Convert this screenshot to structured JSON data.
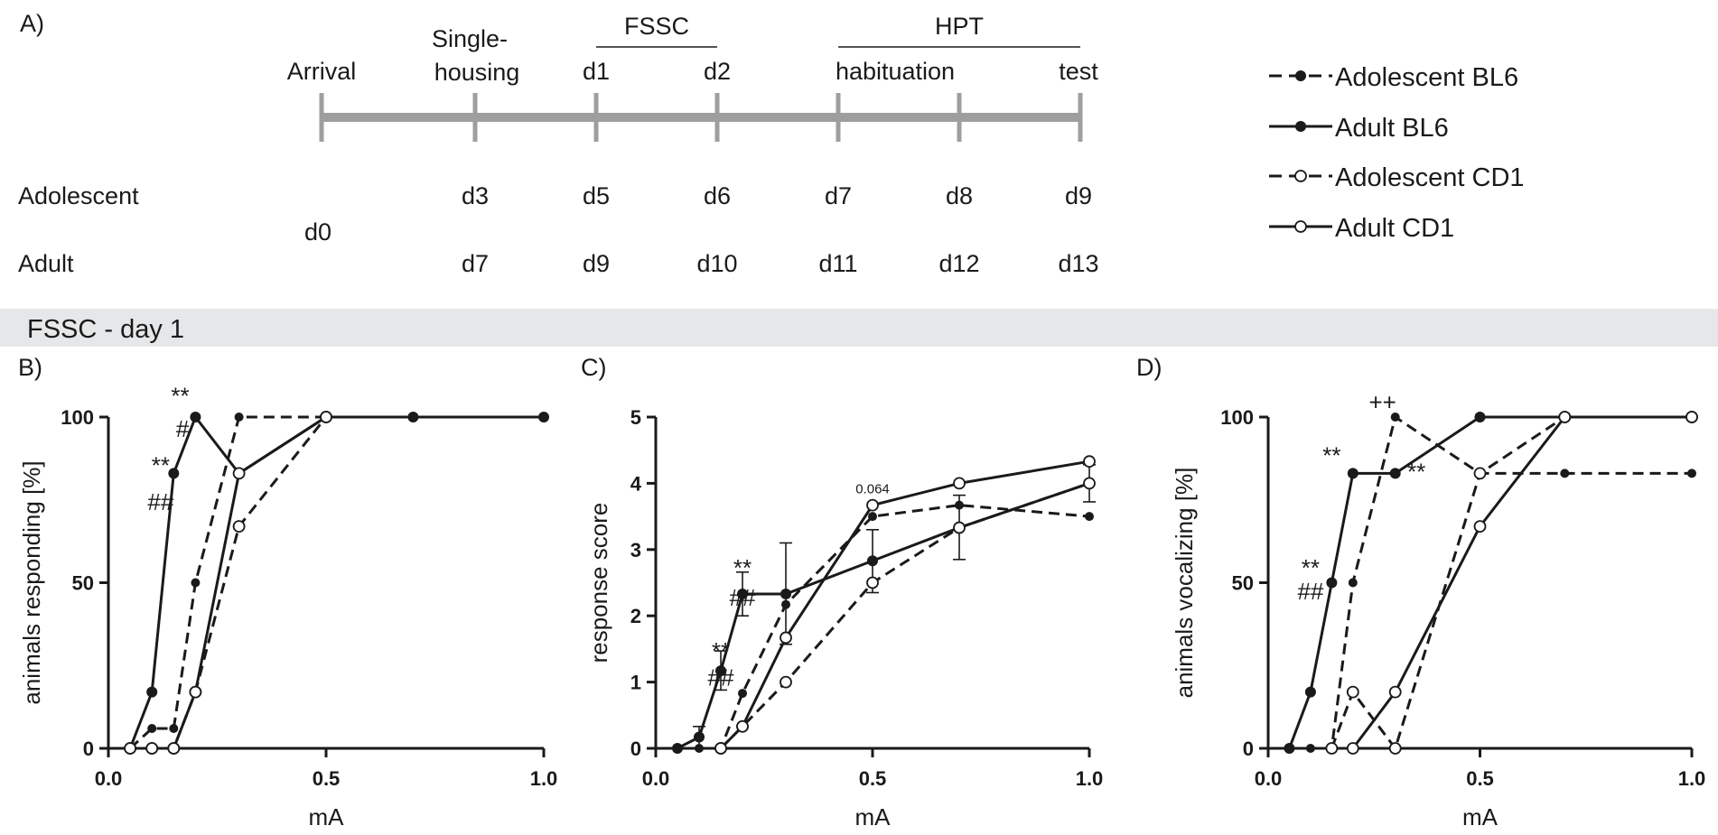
{
  "panel_a": {
    "label": "A)",
    "stages": [
      "Arrival",
      "Single-",
      "housing",
      "d1",
      "d2",
      "habituation",
      "test"
    ],
    "group_labels": {
      "fssc": "FSSC",
      "hpt": "HPT"
    },
    "rows": [
      {
        "name": "Adolescent",
        "days": [
          "d3",
          "d5",
          "d6",
          "d7",
          "d8",
          "d9"
        ]
      },
      {
        "name": "Adult",
        "days": [
          "d7",
          "d9",
          "d10",
          "d11",
          "d12",
          "d13"
        ]
      }
    ],
    "start_day": "d0"
  },
  "legend": [
    {
      "label": "Adolescent BL6",
      "style": "dashed",
      "marker": "filled"
    },
    {
      "label": "Adult BL6",
      "style": "solid",
      "marker": "filled"
    },
    {
      "label": "Adolescent CD1",
      "style": "dashed",
      "marker": "open"
    },
    {
      "label": "Adult CD1",
      "style": "solid",
      "marker": "open"
    }
  ],
  "section_title": "FSSC - day 1",
  "chart_data": [
    {
      "type": "line",
      "label": "B)",
      "xlabel": "mA",
      "ylabel": "animals responding [%]",
      "xlim": [
        0,
        1.0
      ],
      "ylim": [
        0,
        100
      ],
      "xticks": [
        0.0,
        0.5,
        1.0
      ],
      "xtick_labels": [
        "0.0",
        "0.5",
        "1.0"
      ],
      "yticks": [
        0,
        50,
        100
      ],
      "ytick_labels": [
        "0",
        "50",
        "100"
      ],
      "series": [
        {
          "name": "Adolescent BL6",
          "x": [
            0.05,
            0.1,
            0.15,
            0.2,
            0.3,
            0.5
          ],
          "y": [
            0,
            6,
            6,
            50,
            100,
            100
          ]
        },
        {
          "name": "Adult BL6",
          "x": [
            0.05,
            0.1,
            0.15,
            0.2,
            0.3,
            0.5,
            0.7,
            1.0
          ],
          "y": [
            0,
            17,
            83,
            100,
            83,
            100,
            100,
            100
          ]
        },
        {
          "name": "Adolescent CD1",
          "x": [
            0.05,
            0.1,
            0.15,
            0.2,
            0.3,
            0.5
          ],
          "y": [
            0,
            0,
            0,
            17,
            67,
            100
          ]
        },
        {
          "name": "Adult CD1",
          "x": [
            0.05,
            0.1,
            0.15,
            0.2,
            0.3,
            0.5
          ],
          "y": [
            0,
            0,
            0,
            17,
            83,
            100
          ]
        }
      ],
      "annotations": [
        {
          "text": "**",
          "x": 0.165,
          "y": 104
        },
        {
          "text": "#",
          "x": 0.17,
          "y": 94
        },
        {
          "text": "**",
          "x": 0.12,
          "y": 83
        },
        {
          "text": "##",
          "x": 0.12,
          "y": 72
        }
      ]
    },
    {
      "type": "line",
      "label": "C)",
      "xlabel": "mA",
      "ylabel": "response score",
      "xlim": [
        0,
        1.0
      ],
      "ylim": [
        0,
        5
      ],
      "xticks": [
        0.0,
        0.5,
        1.0
      ],
      "xtick_labels": [
        "0.0",
        "0.5",
        "1.0"
      ],
      "yticks": [
        0,
        1,
        2,
        3,
        4,
        5
      ],
      "ytick_labels": [
        "0",
        "1",
        "2",
        "3",
        "4",
        "5"
      ],
      "series": [
        {
          "name": "Adolescent BL6",
          "x": [
            0.1,
            0.15,
            0.2,
            0.3,
            0.5,
            0.7,
            1.0
          ],
          "y": [
            0,
            0,
            0.83,
            2.17,
            3.5,
            3.67,
            3.5
          ]
        },
        {
          "name": "Adult BL6",
          "x": [
            0.05,
            0.1,
            0.15,
            0.2,
            0.3,
            0.5,
            0.7,
            1.0
          ],
          "y": [
            0,
            0.17,
            1.17,
            2.33,
            2.33,
            2.83,
            3.33,
            4.0
          ]
        },
        {
          "name": "Adolescent CD1",
          "x": [
            0.15,
            0.2,
            0.3,
            0.5,
            0.7,
            1.0
          ],
          "y": [
            0,
            0.33,
            1.0,
            2.5,
            3.33,
            4.0
          ]
        },
        {
          "name": "Adult CD1",
          "x": [
            0.15,
            0.2,
            0.3,
            0.5,
            0.7,
            1.0
          ],
          "y": [
            0,
            0.33,
            1.67,
            3.67,
            4.0,
            4.33
          ]
        }
      ],
      "error_bars": [
        {
          "x": 0.1,
          "low": 0.0,
          "high": 0.33
        },
        {
          "x": 0.15,
          "low": 0.88,
          "high": 1.47
        },
        {
          "x": 0.2,
          "low": 2.0,
          "high": 2.66
        },
        {
          "x": 0.3,
          "low": 1.57,
          "high": 3.1
        },
        {
          "x": 0.5,
          "low": 2.35,
          "high": 3.3
        },
        {
          "x": 0.7,
          "low": 2.85,
          "high": 3.82
        },
        {
          "x": 1.0,
          "low": 3.72,
          "high": 4.28
        }
      ],
      "annotations": [
        {
          "text": "**",
          "x": 0.2,
          "y": 2.6
        },
        {
          "text": "##",
          "x": 0.2,
          "y": 2.15
        },
        {
          "text": "**",
          "x": 0.15,
          "y": 1.35
        },
        {
          "text": "##",
          "x": 0.15,
          "y": 0.95
        },
        {
          "text": "0.064",
          "x": 0.5,
          "y": 3.85
        }
      ]
    },
    {
      "type": "line",
      "label": "D)",
      "xlabel": "mA",
      "ylabel": "animals vocalizing [%]",
      "xlim": [
        0,
        1.0
      ],
      "ylim": [
        0,
        100
      ],
      "xticks": [
        0.0,
        0.5,
        1.0
      ],
      "xtick_labels": [
        "0.0",
        "0.5",
        "1.0"
      ],
      "yticks": [
        0,
        50,
        100
      ],
      "ytick_labels": [
        "0",
        "50",
        "100"
      ],
      "series": [
        {
          "name": "Adolescent BL6",
          "x": [
            0.05,
            0.1,
            0.15,
            0.2,
            0.3,
            0.5,
            0.7,
            1.0
          ],
          "y": [
            0,
            0,
            0,
            50,
            100,
            83,
            83,
            83
          ]
        },
        {
          "name": "Adult BL6",
          "x": [
            0.05,
            0.1,
            0.15,
            0.2,
            0.3,
            0.5,
            0.7,
            1.0
          ],
          "y": [
            0,
            17,
            50,
            83,
            83,
            100,
            100,
            100
          ]
        },
        {
          "name": "Adolescent CD1",
          "x": [
            0.15,
            0.2,
            0.3,
            0.5,
            0.7,
            1.0
          ],
          "y": [
            0,
            17,
            0,
            83,
            100,
            100
          ]
        },
        {
          "name": "Adult CD1",
          "x": [
            0.2,
            0.3,
            0.5,
            0.7,
            1.0
          ],
          "y": [
            0,
            17,
            67,
            100,
            100
          ]
        }
      ],
      "annotations": [
        {
          "text": "++",
          "x": 0.27,
          "y": 102
        },
        {
          "text": "**",
          "x": 0.15,
          "y": 86
        },
        {
          "text": "**",
          "x": 0.35,
          "y": 81
        },
        {
          "text": "**",
          "x": 0.1,
          "y": 52
        },
        {
          "text": "##",
          "x": 0.1,
          "y": 45
        }
      ]
    }
  ]
}
